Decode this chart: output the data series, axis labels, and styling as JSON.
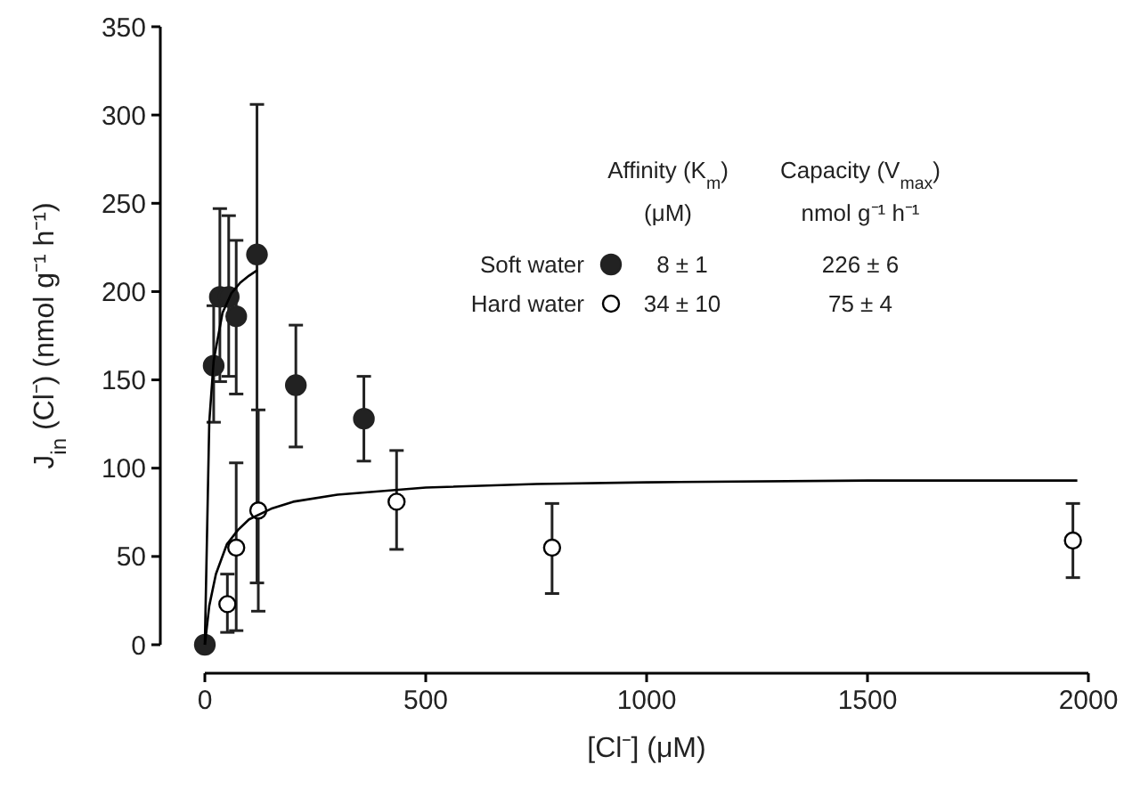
{
  "chart_data": {
    "type": "scatter",
    "xlabel": "[Cl⁻] (μM)",
    "ylabel": "J$_{in}$ (Cl⁻) (nmol g⁻¹ h⁻¹)",
    "xlim": [
      0,
      2000
    ],
    "xticks": [
      0,
      500,
      1000,
      1500,
      2000
    ],
    "ylim": [
      0,
      350
    ],
    "yticks": [
      0,
      50,
      100,
      150,
      200,
      250,
      300,
      350
    ],
    "grid": false,
    "legend": "top",
    "annotations": [
      "Affinity (K$_{m}$)",
      "(μM)",
      "Capacity (V$_{max}$)",
      "nmol g⁻¹ h⁻¹",
      "8 ± 1",
      "226 ± 6",
      "34 ± 10",
      "75 ± 4"
    ],
    "series": [
      {
        "name": "Soft water",
        "color": "#222222",
        "marker": "circle",
        "x": [
          0,
          20,
          34,
          54,
          71,
          118,
          206,
          360
        ],
        "values": [
          0,
          158,
          197,
          197,
          186,
          221,
          147,
          128
        ],
        "errors": [
          null,
          [
            126,
            192
          ],
          [
            149,
            247
          ],
          [
            152,
            243
          ],
          [
            142,
            229
          ],
          [
            35,
            306
          ],
          [
            112,
            181
          ],
          [
            104,
            152
          ]
        ]
      },
      {
        "name": "Hard water",
        "color": "#ffffff",
        "marker": "circle",
        "x": [
          51,
          71,
          121,
          434,
          786,
          1965
        ],
        "values": [
          23,
          55,
          76,
          81,
          55,
          59
        ],
        "errors": [
          [
            7,
            40
          ],
          [
            8,
            103
          ],
          [
            19,
            133
          ],
          [
            54,
            110
          ],
          [
            29,
            80
          ],
          [
            38,
            80
          ]
        ]
      },
      {
        "type": "line",
        "color": "#000000",
        "line_style": "solid",
        "x": [
          0,
          10,
          20,
          40,
          60,
          80,
          100,
          118
        ],
        "values": [
          0,
          126,
          161,
          188,
          199,
          205,
          209,
          212
        ]
      },
      {
        "type": "line",
        "color": "#000000",
        "line_style": "solid",
        "x": [
          0,
          10,
          25,
          50,
          75,
          100,
          150,
          200,
          300,
          500,
          750,
          1000,
          1500,
          1975
        ],
        "values": [
          0,
          22,
          40,
          57,
          65,
          71,
          77,
          81,
          85,
          89,
          91,
          92,
          93,
          93
        ]
      }
    ]
  }
}
